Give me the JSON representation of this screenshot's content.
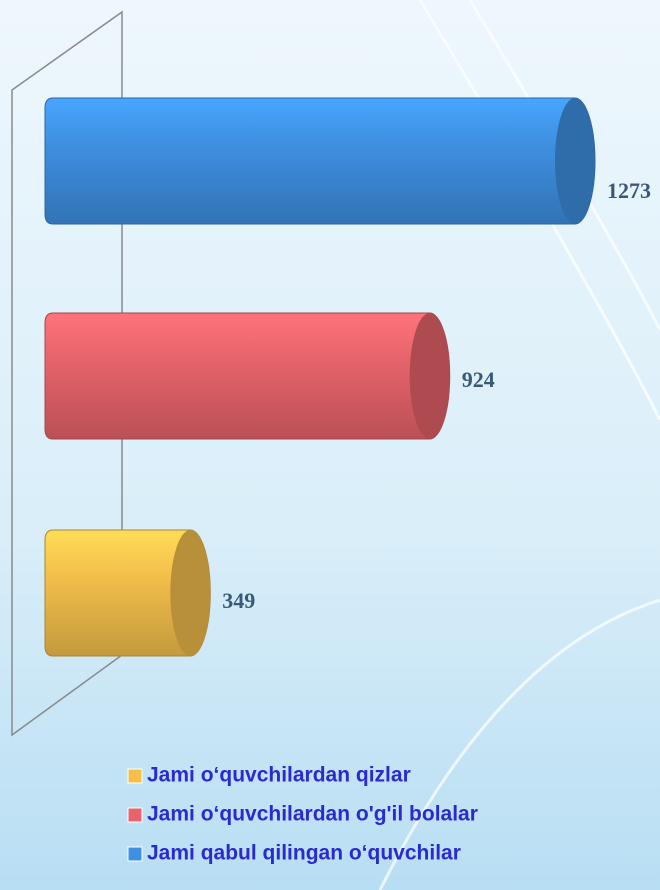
{
  "chart_data": {
    "type": "bar",
    "orientation": "horizontal",
    "categories": [
      "Jami  o‘quvchilardan qizlar",
      "Jami  o‘quvchilardan o'g'il bolalar",
      "Jami qabul qilingan  o‘quvchilar"
    ],
    "values": [
      349,
      924,
      1273
    ],
    "colors": [
      "#f4c04c",
      "#e8646c",
      "#3f90e2"
    ]
  }
}
